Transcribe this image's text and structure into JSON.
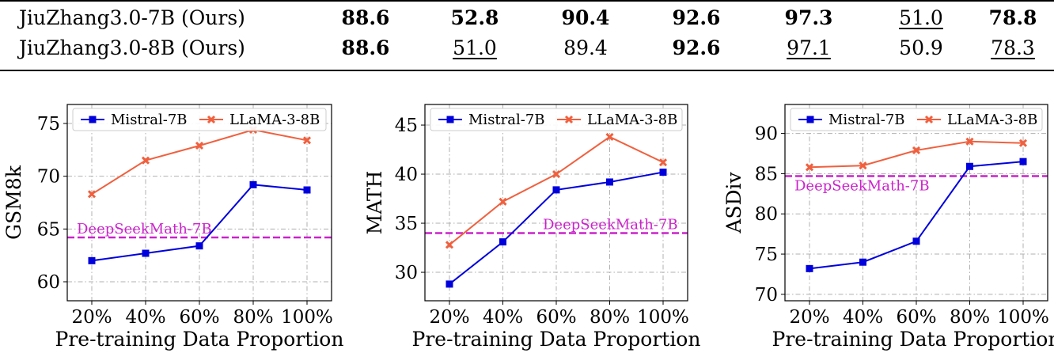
{
  "table": {
    "rows": [
      {
        "model": "JiuZhang3.0-7B (Ours)",
        "cells": [
          {
            "text": "88.6",
            "bold": true,
            "underline": false
          },
          {
            "text": "52.8",
            "bold": true,
            "underline": false
          },
          {
            "text": "90.4",
            "bold": true,
            "underline": false
          },
          {
            "text": "92.6",
            "bold": true,
            "underline": false
          },
          {
            "text": "97.3",
            "bold": true,
            "underline": false
          },
          {
            "text": "51.0",
            "bold": false,
            "underline": true
          },
          {
            "text": "78.8",
            "bold": true,
            "underline": false
          }
        ]
      },
      {
        "model": "JiuZhang3.0-8B (Ours)",
        "cells": [
          {
            "text": "88.6",
            "bold": true,
            "underline": false
          },
          {
            "text": "51.0",
            "bold": false,
            "underline": true
          },
          {
            "text": "89.4",
            "bold": false,
            "underline": false
          },
          {
            "text": "92.6",
            "bold": true,
            "underline": false
          },
          {
            "text": "97.1",
            "bold": false,
            "underline": true
          },
          {
            "text": "50.9",
            "bold": false,
            "underline": false
          },
          {
            "text": "78.3",
            "bold": false,
            "underline": true
          }
        ]
      }
    ]
  },
  "chart_data": [
    {
      "type": "line",
      "categories": [
        "20%",
        "40%",
        "60%",
        "80%",
        "100%"
      ],
      "xlabel": "Pre-training Data Proportion",
      "ylabel": "GSM8k",
      "ylim": [
        58.2,
        76.8
      ],
      "yticks": [
        60,
        65,
        70,
        75
      ],
      "grid": true,
      "legend_position": "top",
      "series": [
        {
          "name": "Mistral-7B",
          "color": "#0000dd",
          "marker": "square",
          "values": [
            62.0,
            62.7,
            63.4,
            69.2,
            68.7
          ]
        },
        {
          "name": "LLaMA-3-8B",
          "color": "#f0603e",
          "marker": "x",
          "values": [
            68.3,
            71.5,
            72.9,
            74.4,
            73.4
          ]
        }
      ],
      "baseline": {
        "label": "DeepSeekMath-7B",
        "value": 64.2,
        "color": "#cc22cc"
      }
    },
    {
      "type": "line",
      "categories": [
        "20%",
        "40%",
        "60%",
        "80%",
        "100%"
      ],
      "xlabel": "Pre-training Data Proportion",
      "ylabel": "MATH",
      "ylim": [
        27.1,
        47.1
      ],
      "yticks": [
        30,
        35,
        40,
        45
      ],
      "grid": true,
      "legend_position": "top",
      "series": [
        {
          "name": "Mistral-7B",
          "color": "#0000dd",
          "marker": "square",
          "values": [
            28.8,
            33.1,
            38.4,
            39.2,
            40.2
          ]
        },
        {
          "name": "LLaMA-3-8B",
          "color": "#f0603e",
          "marker": "x",
          "values": [
            32.8,
            37.2,
            40.0,
            43.8,
            41.2
          ]
        }
      ],
      "baseline": {
        "label": "DeepSeekMath-7B",
        "value": 34.0,
        "color": "#cc22cc"
      }
    },
    {
      "type": "line",
      "categories": [
        "20%",
        "40%",
        "60%",
        "80%",
        "100%"
      ],
      "xlabel": "Pre-training Data Proportion",
      "ylabel": "ASDiv",
      "ylim": [
        69.2,
        93.6
      ],
      "yticks": [
        70,
        75,
        80,
        85,
        90
      ],
      "grid": true,
      "legend_position": "top",
      "series": [
        {
          "name": "Mistral-7B",
          "color": "#0000dd",
          "marker": "square",
          "values": [
            73.2,
            74.0,
            76.6,
            85.9,
            86.5
          ]
        },
        {
          "name": "LLaMA-3-8B",
          "color": "#f0603e",
          "marker": "x",
          "values": [
            85.8,
            86.0,
            87.9,
            89.0,
            88.8
          ]
        }
      ],
      "baseline": {
        "label": "DeepSeekMath-7B",
        "value": 84.7,
        "color": "#cc22cc"
      }
    }
  ]
}
